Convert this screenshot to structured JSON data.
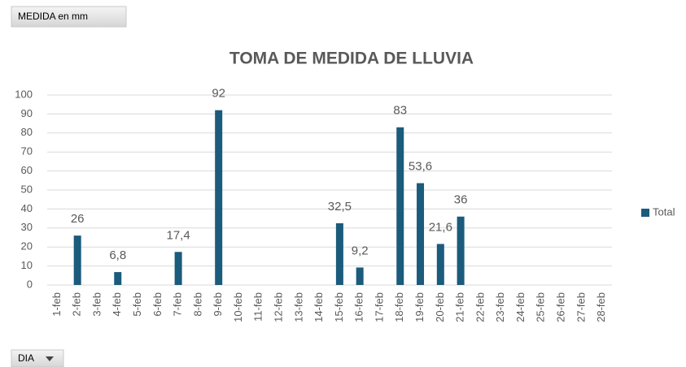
{
  "value_field": "MEDIDA en mm",
  "axis_field": "DIA",
  "chart_data": {
    "type": "bar",
    "title": "TOMA DE MEDIDA DE LLUVIA",
    "categories": [
      "1-feb",
      "2-feb",
      "3-feb",
      "4-feb",
      "5-feb",
      "6-feb",
      "7-feb",
      "8-feb",
      "9-feb",
      "10-feb",
      "11-feb",
      "12-feb",
      "13-feb",
      "14-feb",
      "15-feb",
      "16-feb",
      "17-feb",
      "18-feb",
      "19-feb",
      "20-feb",
      "21-feb",
      "22-feb",
      "23-feb",
      "24-feb",
      "25-feb",
      "26-feb",
      "27-feb",
      "28-feb"
    ],
    "series": [
      {
        "name": "Total",
        "color": "#1b5b7c",
        "values": [
          null,
          26,
          null,
          6.8,
          null,
          null,
          17.4,
          null,
          92,
          null,
          null,
          null,
          null,
          null,
          32.5,
          9.2,
          null,
          83,
          53.6,
          21.6,
          36,
          null,
          null,
          null,
          null,
          null,
          null,
          null
        ],
        "value_labels": [
          null,
          "26",
          null,
          "6,8",
          null,
          null,
          "17,4",
          null,
          "92",
          null,
          null,
          null,
          null,
          null,
          "32,5",
          "9,2",
          null,
          "83",
          "53,6",
          "21,6",
          "36",
          null,
          null,
          null,
          null,
          null,
          null,
          null
        ]
      }
    ],
    "ylim": [
      0,
      100
    ],
    "yticks": [
      0,
      10,
      20,
      30,
      40,
      50,
      60,
      70,
      80,
      90,
      100
    ],
    "grid": true,
    "legend": "right"
  }
}
